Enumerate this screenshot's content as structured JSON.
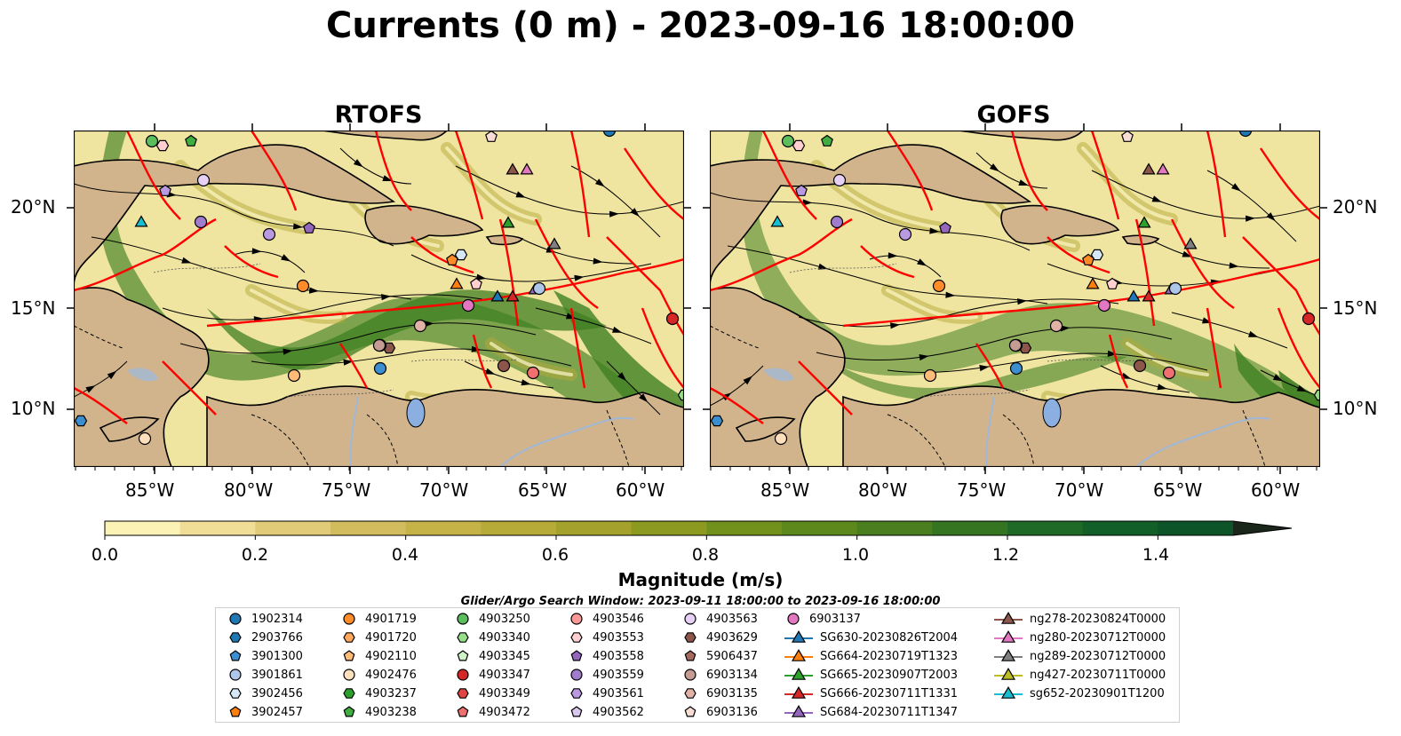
{
  "title": "Currents (0 m) - 2023-09-16 18:00:00",
  "panels": [
    {
      "title": "RTOFS"
    },
    {
      "title": "GOFS"
    }
  ],
  "axes": {
    "lon_labels": [
      "85°W",
      "80°W",
      "75°W",
      "70°W",
      "65°W",
      "60°W"
    ],
    "lat_labels": [
      "20°N",
      "15°N",
      "10°N"
    ]
  },
  "colorbar": {
    "label": "Magnitude (m/s)",
    "ticks": [
      "0.0",
      "0.2",
      "0.4",
      "0.6",
      "0.8",
      "1.0",
      "1.2",
      "1.4"
    ],
    "colors": [
      "#fcf2b6",
      "#f0dd96",
      "#e1cb78",
      "#d3bc5e",
      "#c6b348",
      "#b6aa38",
      "#a4a12c",
      "#8c9a22",
      "#72911c",
      "#5d881c",
      "#4a7e1f",
      "#357421",
      "#1f6a26",
      "#135f2a",
      "#0d5428",
      "#124625",
      "#173b21",
      "#1a301c",
      "#1b261a"
    ]
  },
  "search_window": "Glider/Argo Search Window: 2023-09-11 18:00:00 to 2023-09-16 18:00:00",
  "legend": {
    "items": [
      {
        "label": "1902314",
        "marker": "circle",
        "color": "#1f77b4"
      },
      {
        "label": "2903766",
        "marker": "hexagon",
        "color": "#1f77b4"
      },
      {
        "label": "3901300",
        "marker": "pentagon",
        "color": "#3b8ed0"
      },
      {
        "label": "3901861",
        "marker": "circle",
        "color": "#aec7e8"
      },
      {
        "label": "3902456",
        "marker": "hexagon",
        "color": "#d6e8f7"
      },
      {
        "label": "3902457",
        "marker": "pentagon",
        "color": "#ff7f0e"
      },
      {
        "label": "4901719",
        "marker": "circle",
        "color": "#ff8c28"
      },
      {
        "label": "4901720",
        "marker": "hexagon",
        "color": "#ffa75c"
      },
      {
        "label": "4902110",
        "marker": "pentagon",
        "color": "#ffbb78"
      },
      {
        "label": "4902476",
        "marker": "circle",
        "color": "#ffe0bd"
      },
      {
        "label": "4903237",
        "marker": "hexagon",
        "color": "#2ca02c"
      },
      {
        "label": "4903238",
        "marker": "pentagon",
        "color": "#3fad3f"
      },
      {
        "label": "4903250",
        "marker": "circle",
        "color": "#5cbd5c"
      },
      {
        "label": "4903340",
        "marker": "hexagon",
        "color": "#98df8a"
      },
      {
        "label": "4903345",
        "marker": "pentagon",
        "color": "#d0f2c8"
      },
      {
        "label": "4903347",
        "marker": "circle",
        "color": "#d62728"
      },
      {
        "label": "4903349",
        "marker": "hexagon",
        "color": "#e04444"
      },
      {
        "label": "4903472",
        "marker": "pentagon",
        "color": "#f07070"
      },
      {
        "label": "4903546",
        "marker": "circle",
        "color": "#ff9896"
      },
      {
        "label": "4903553",
        "marker": "hexagon",
        "color": "#ffd0cf"
      },
      {
        "label": "4903558",
        "marker": "pentagon",
        "color": "#9467bd"
      },
      {
        "label": "4903559",
        "marker": "circle",
        "color": "#a07ccc"
      },
      {
        "label": "4903561",
        "marker": "hexagon",
        "color": "#b99ae0"
      },
      {
        "label": "4903562",
        "marker": "pentagon",
        "color": "#d9c7f0"
      },
      {
        "label": "4903563",
        "marker": "circle",
        "color": "#e6d0f5"
      },
      {
        "label": "4903629",
        "marker": "hexagon",
        "color": "#8c564b"
      },
      {
        "label": "5906437",
        "marker": "pentagon",
        "color": "#a66a5e"
      },
      {
        "label": "6903134",
        "marker": "circle",
        "color": "#c49c94"
      },
      {
        "label": "6903135",
        "marker": "hexagon",
        "color": "#e0b3a6"
      },
      {
        "label": "6903136",
        "marker": "pentagon",
        "color": "#f7ddd5"
      },
      {
        "label": "6903137",
        "marker": "circle",
        "color": "#e377c2"
      },
      {
        "label": "SG630-20230826T2004",
        "marker": "triangle-line",
        "color": "#1f77b4"
      },
      {
        "label": "SG664-20230719T1323",
        "marker": "triangle-line",
        "color": "#ff7f0e"
      },
      {
        "label": "SG665-20230907T2003",
        "marker": "triangle-line",
        "color": "#2ca02c"
      },
      {
        "label": "SG666-20230711T1331",
        "marker": "triangle-line",
        "color": "#d62728"
      },
      {
        "label": "SG684-20230711T1347",
        "marker": "triangle-line",
        "color": "#9467bd"
      },
      {
        "label": "ng278-20230824T0000",
        "marker": "triangle-line",
        "color": "#8c564b"
      },
      {
        "label": "ng280-20230712T0000",
        "marker": "triangle-line",
        "color": "#e377c2"
      },
      {
        "label": "ng289-20230712T0000",
        "marker": "triangle-line",
        "color": "#7f7f7f"
      },
      {
        "label": "ng427-20230711T0000",
        "marker": "triangle-line",
        "color": "#bcbd22"
      },
      {
        "label": "sg652-20230901T1200",
        "marker": "triangle-line",
        "color": "#17becf"
      }
    ]
  }
}
